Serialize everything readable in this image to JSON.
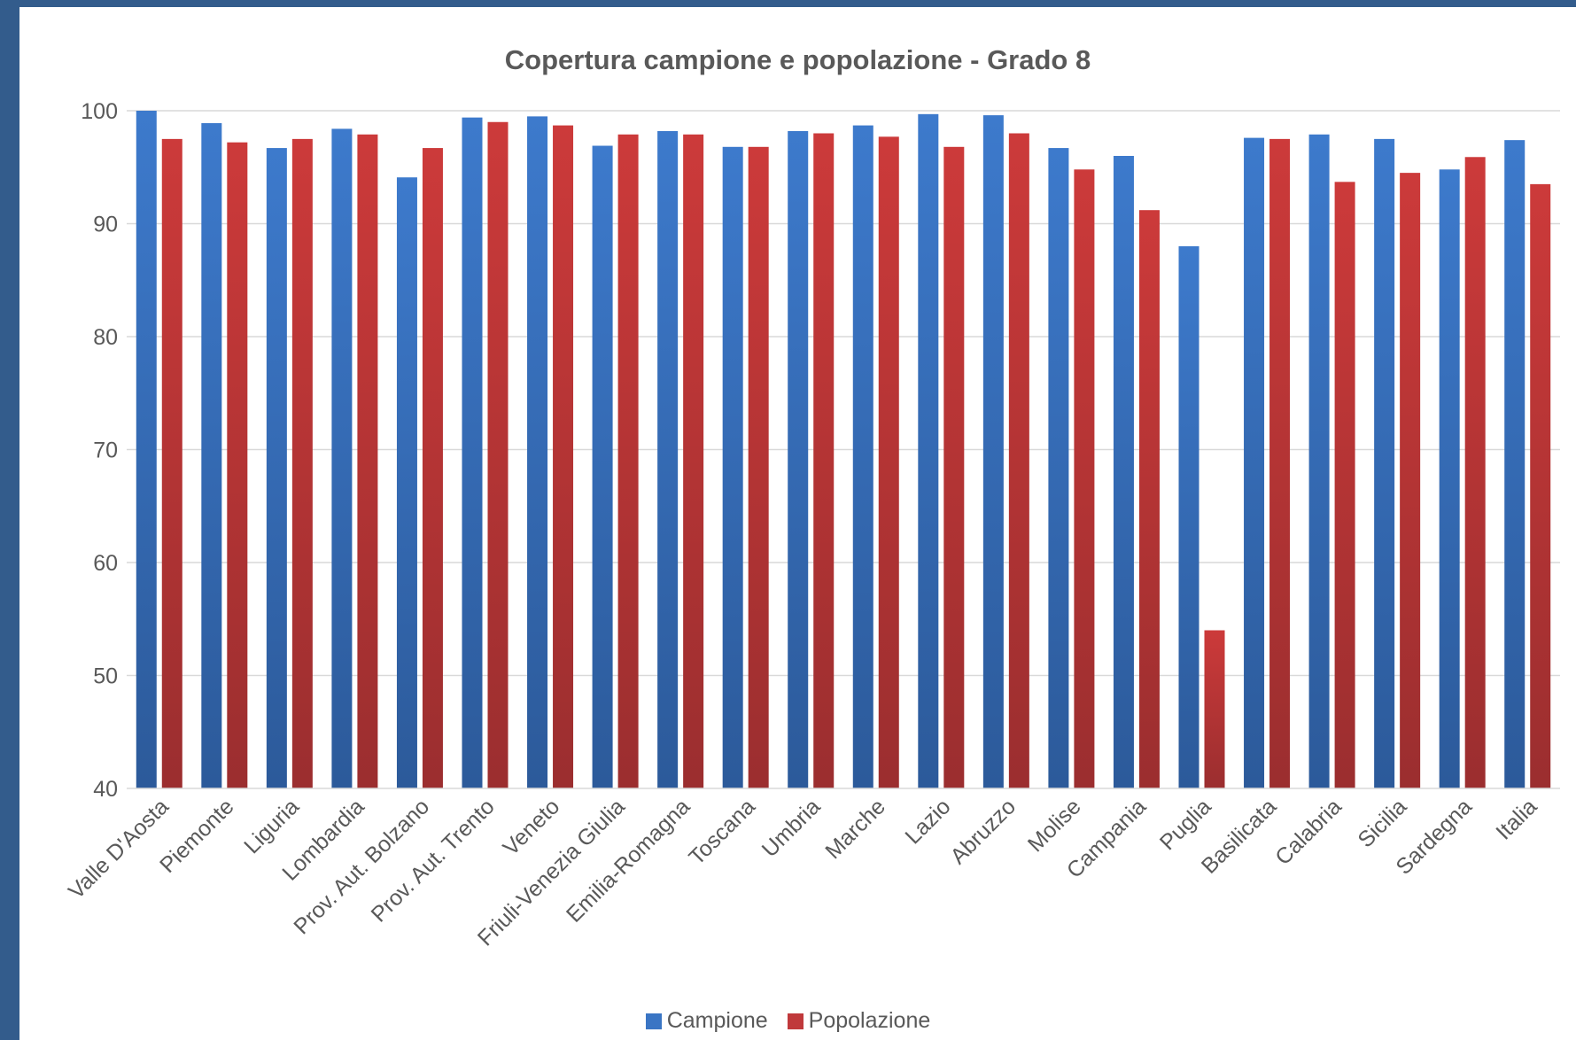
{
  "chart_data": {
    "type": "bar",
    "title": "Copertura campione e popolazione - Grado 8",
    "xlabel": "",
    "ylabel": "",
    "ylim": [
      40,
      100
    ],
    "yticks": [
      40,
      50,
      60,
      70,
      80,
      90,
      100
    ],
    "grid": true,
    "legend_position": "bottom",
    "categories": [
      "Valle D'Aosta",
      "Piemonte",
      "Liguria",
      "Lombardia",
      "Prov. Aut. Bolzano",
      "Prov. Aut. Trento",
      "Veneto",
      "Friuli-Venezia Giulia",
      "Emilia-Romagna",
      "Toscana",
      "Umbria",
      "Marche",
      "Lazio",
      "Abruzzo",
      "Molise",
      "Campania",
      "Puglia",
      "Basilicata",
      "Calabria",
      "Sicilia",
      "Sardegna",
      "Italia"
    ],
    "series": [
      {
        "name": "Campione",
        "color": "#3a75c4",
        "values": [
          100.0,
          98.9,
          96.7,
          98.4,
          94.1,
          99.4,
          99.5,
          96.9,
          98.2,
          96.8,
          98.2,
          98.7,
          99.7,
          99.6,
          96.7,
          96.0,
          88.0,
          97.6,
          97.9,
          97.5,
          94.8,
          97.4
        ]
      },
      {
        "name": "Popolazione",
        "color": "#c0393b",
        "values": [
          97.5,
          97.2,
          97.5,
          97.9,
          96.7,
          99.0,
          98.7,
          97.9,
          97.9,
          96.8,
          98.0,
          97.7,
          96.8,
          98.0,
          94.8,
          91.2,
          54.0,
          97.5,
          93.7,
          94.5,
          95.9,
          93.5
        ]
      }
    ]
  }
}
